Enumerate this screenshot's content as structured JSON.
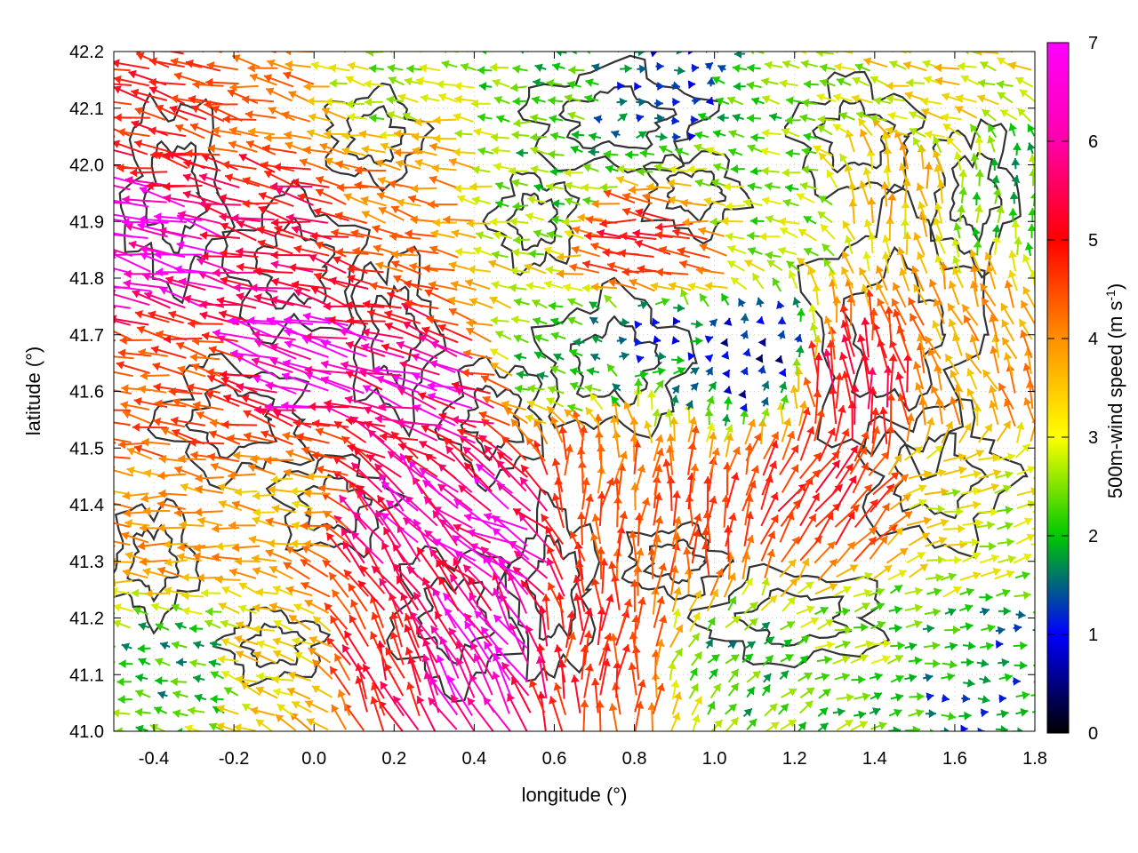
{
  "chart_data": {
    "type": "vector-field",
    "xlabel": "longitude (°)",
    "ylabel": "latitude (°)",
    "xlim": [
      -0.5,
      1.8
    ],
    "ylim": [
      41.0,
      42.2
    ],
    "xticks": [
      -0.4,
      -0.2,
      0.0,
      0.2,
      0.4,
      0.6,
      0.8,
      1.0,
      1.2,
      1.4,
      1.6,
      1.8
    ],
    "yticks": [
      41.0,
      41.1,
      41.2,
      41.3,
      41.4,
      41.5,
      41.6,
      41.7,
      41.8,
      41.9,
      42.0,
      42.1,
      42.2
    ],
    "xtick_labels": [
      "-0.4",
      "-0.2",
      "0.0",
      "0.2",
      "0.4",
      "0.6",
      "0.8",
      "1.0",
      "1.2",
      "1.4",
      "1.6",
      "1.8"
    ],
    "ytick_labels": [
      "41.0",
      "41.1",
      "41.2",
      "41.3",
      "41.4",
      "41.5",
      "41.6",
      "41.7",
      "41.8",
      "41.9",
      "42.0",
      "42.1",
      "42.2"
    ],
    "grid": true,
    "colorbar": {
      "label": "500m-wind speed (m s-1)",
      "label_main": "500m-wind speed (m s",
      "label_sup": "-1",
      "label_end": ")",
      "range": [
        0,
        7
      ],
      "ticks": [
        0,
        1,
        2,
        3,
        4,
        5,
        6,
        7
      ],
      "tick_labels": [
        "0",
        "1",
        "2",
        "3",
        "4",
        "5",
        "6",
        "7"
      ],
      "colors": [
        "#000000",
        "#0000ff",
        "#00ff00",
        "#ffff00",
        "#ff8000",
        "#ff0000",
        "#ff00ff"
      ]
    },
    "wind_regions": [
      {
        "lon": -0.35,
        "lat": 42.12,
        "u": -5.0,
        "v": 1.0,
        "speed": 5.4
      },
      {
        "lon": -0.1,
        "lat": 42.1,
        "u": -4.0,
        "v": 0.8,
        "speed": 4.5
      },
      {
        "lon": 0.2,
        "lat": 42.12,
        "u": -2.5,
        "v": 0.5,
        "speed": 2.8
      },
      {
        "lon": 0.6,
        "lat": 42.12,
        "u": -2.0,
        "v": 0.2,
        "speed": 2.2
      },
      {
        "lon": 0.85,
        "lat": 42.12,
        "u": 0.8,
        "v": 0.0,
        "speed": 1.0
      },
      {
        "lon": 1.2,
        "lat": 42.12,
        "u": -2.2,
        "v": 0.4,
        "speed": 2.4
      },
      {
        "lon": 1.55,
        "lat": 42.12,
        "u": -3.0,
        "v": 0.6,
        "speed": 3.3
      },
      {
        "lon": -0.35,
        "lat": 41.85,
        "u": -6.5,
        "v": 1.4,
        "speed": 7.0
      },
      {
        "lon": -0.05,
        "lat": 41.9,
        "u": -5.5,
        "v": 1.2,
        "speed": 5.9
      },
      {
        "lon": 0.25,
        "lat": 41.95,
        "u": -4.0,
        "v": 0.9,
        "speed": 4.3
      },
      {
        "lon": 0.6,
        "lat": 41.95,
        "u": -2.0,
        "v": 0.3,
        "speed": 2.3
      },
      {
        "lon": 0.85,
        "lat": 41.85,
        "u": -5.2,
        "v": 0.6,
        "speed": 5.6
      },
      {
        "lon": 1.15,
        "lat": 41.95,
        "u": -2.5,
        "v": 0.3,
        "speed": 2.6
      },
      {
        "lon": 1.45,
        "lat": 41.95,
        "u": -0.4,
        "v": 3.0,
        "speed": 3.6
      },
      {
        "lon": 1.7,
        "lat": 41.95,
        "u": 0.0,
        "v": 2.0,
        "speed": 2.2
      },
      {
        "lon": -0.3,
        "lat": 41.6,
        "u": -4.5,
        "v": 0.9,
        "speed": 4.8
      },
      {
        "lon": 0.0,
        "lat": 41.65,
        "u": -6.0,
        "v": 1.5,
        "speed": 7.0
      },
      {
        "lon": 0.35,
        "lat": 41.6,
        "u": -6.0,
        "v": 1.6,
        "speed": 6.6
      },
      {
        "lon": 0.6,
        "lat": 41.65,
        "u": -2.0,
        "v": 0.6,
        "speed": 2.2
      },
      {
        "lon": 0.85,
        "lat": 41.7,
        "u": 1.2,
        "v": 0.0,
        "speed": 1.3
      },
      {
        "lon": 1.1,
        "lat": 41.65,
        "u": 0.3,
        "v": 0.6,
        "speed": 0.8
      },
      {
        "lon": 1.35,
        "lat": 41.6,
        "u": -0.8,
        "v": 5.5,
        "speed": 5.8
      },
      {
        "lon": 1.65,
        "lat": 41.65,
        "u": -1.5,
        "v": 3.5,
        "speed": 4.0
      },
      {
        "lon": -0.35,
        "lat": 41.35,
        "u": -4.0,
        "v": 0.3,
        "speed": 4.1
      },
      {
        "lon": -0.05,
        "lat": 41.4,
        "u": -3.6,
        "v": 0.4,
        "speed": 3.8
      },
      {
        "lon": 0.25,
        "lat": 41.35,
        "u": -3.5,
        "v": 4.5,
        "speed": 6.5
      },
      {
        "lon": 0.5,
        "lat": 41.35,
        "u": -4.5,
        "v": 2.5,
        "speed": 6.8
      },
      {
        "lon": 0.7,
        "lat": 41.4,
        "u": 0.6,
        "v": 4.0,
        "speed": 4.6
      },
      {
        "lon": 0.95,
        "lat": 41.35,
        "u": 0.3,
        "v": 4.5,
        "speed": 5.0
      },
      {
        "lon": 1.25,
        "lat": 41.4,
        "u": 2.5,
        "v": 3.5,
        "speed": 5.5
      },
      {
        "lon": 1.6,
        "lat": 41.4,
        "u": 3.0,
        "v": 0.5,
        "speed": 3.0
      },
      {
        "lon": -0.35,
        "lat": 41.12,
        "u": -2.0,
        "v": 0.4,
        "speed": 2.0
      },
      {
        "lon": -0.05,
        "lat": 41.12,
        "u": -2.5,
        "v": 0.8,
        "speed": 3.2
      },
      {
        "lon": 0.2,
        "lat": 41.12,
        "u": -1.5,
        "v": 4.0,
        "speed": 5.8
      },
      {
        "lon": 0.45,
        "lat": 41.12,
        "u": -3.5,
        "v": 5.0,
        "speed": 6.8
      },
      {
        "lon": 0.7,
        "lat": 41.12,
        "u": 0.4,
        "v": 4.5,
        "speed": 5.2
      },
      {
        "lon": 1.05,
        "lat": 41.12,
        "u": 1.5,
        "v": 1.5,
        "speed": 2.1
      },
      {
        "lon": 1.35,
        "lat": 41.15,
        "u": 2.2,
        "v": 0.6,
        "speed": 2.4
      },
      {
        "lon": 1.65,
        "lat": 41.08,
        "u": 3.0,
        "v": 0.0,
        "speed": 1.6
      }
    ]
  }
}
